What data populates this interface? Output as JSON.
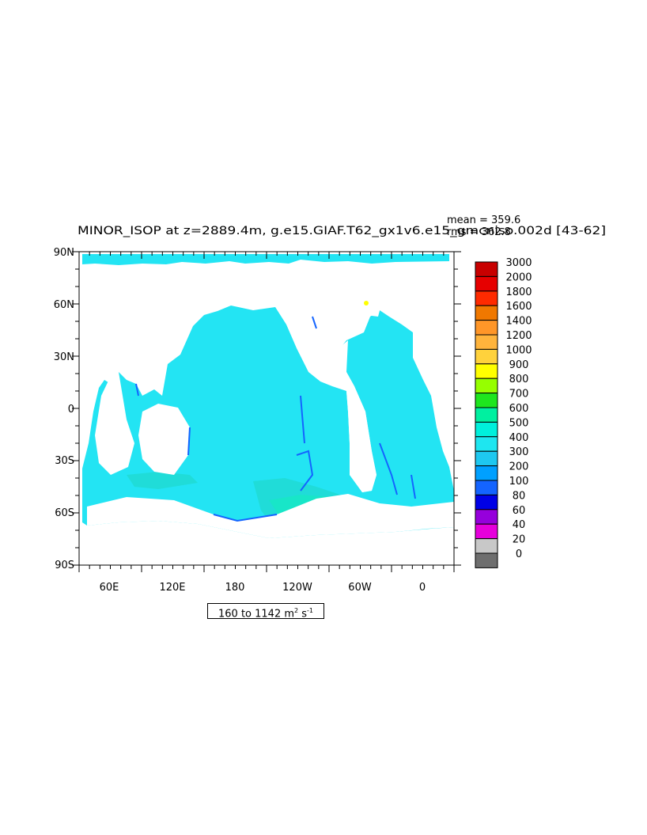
{
  "title": "MINOR_ISOP at z=2889.4m, g.e15.GIAF.T62_gx1v6.e15_gmcniso.002d  [43-62]",
  "stats": {
    "mean": "mean = 359.6",
    "rms": "rms = 362.8"
  },
  "lat_labels": [
    "90N",
    "60N",
    "30N",
    "0",
    "30S",
    "60S",
    "90S"
  ],
  "lon_labels": [
    "60E",
    "120E",
    "180",
    "120W",
    "60W",
    "0"
  ],
  "range_label": {
    "text": "160 to 1142 m",
    "sup1": "2",
    "mid": " s",
    "sup2": "-1"
  },
  "colorbar": {
    "levels": [
      "3000",
      "2000",
      "1800",
      "1600",
      "1400",
      "1200",
      "1000",
      "900",
      "800",
      "700",
      "600",
      "500",
      "400",
      "300",
      "200",
      "100",
      "80",
      "60",
      "40",
      "20",
      "0"
    ],
    "colors": [
      "#c80000",
      "#e60000",
      "#ff2a00",
      "#f07800",
      "#ff9628",
      "#ffb43c",
      "#ffd23c",
      "#ffff00",
      "#96ff00",
      "#1ee61e",
      "#00f0a0",
      "#00f0dc",
      "#1ee6f0",
      "#1ec8f0",
      "#00a0ff",
      "#1464ff",
      "#0000e6",
      "#9600dc",
      "#e600dc",
      "#c8c8c8",
      "#6e6e6e"
    ]
  },
  "map_colors": {
    "ocean": "#23e4f3",
    "ocean_warm": "#20dcd8",
    "ocean_warm2": "#18e6c8",
    "coast": "#1464ff",
    "land": "#ffffff"
  }
}
